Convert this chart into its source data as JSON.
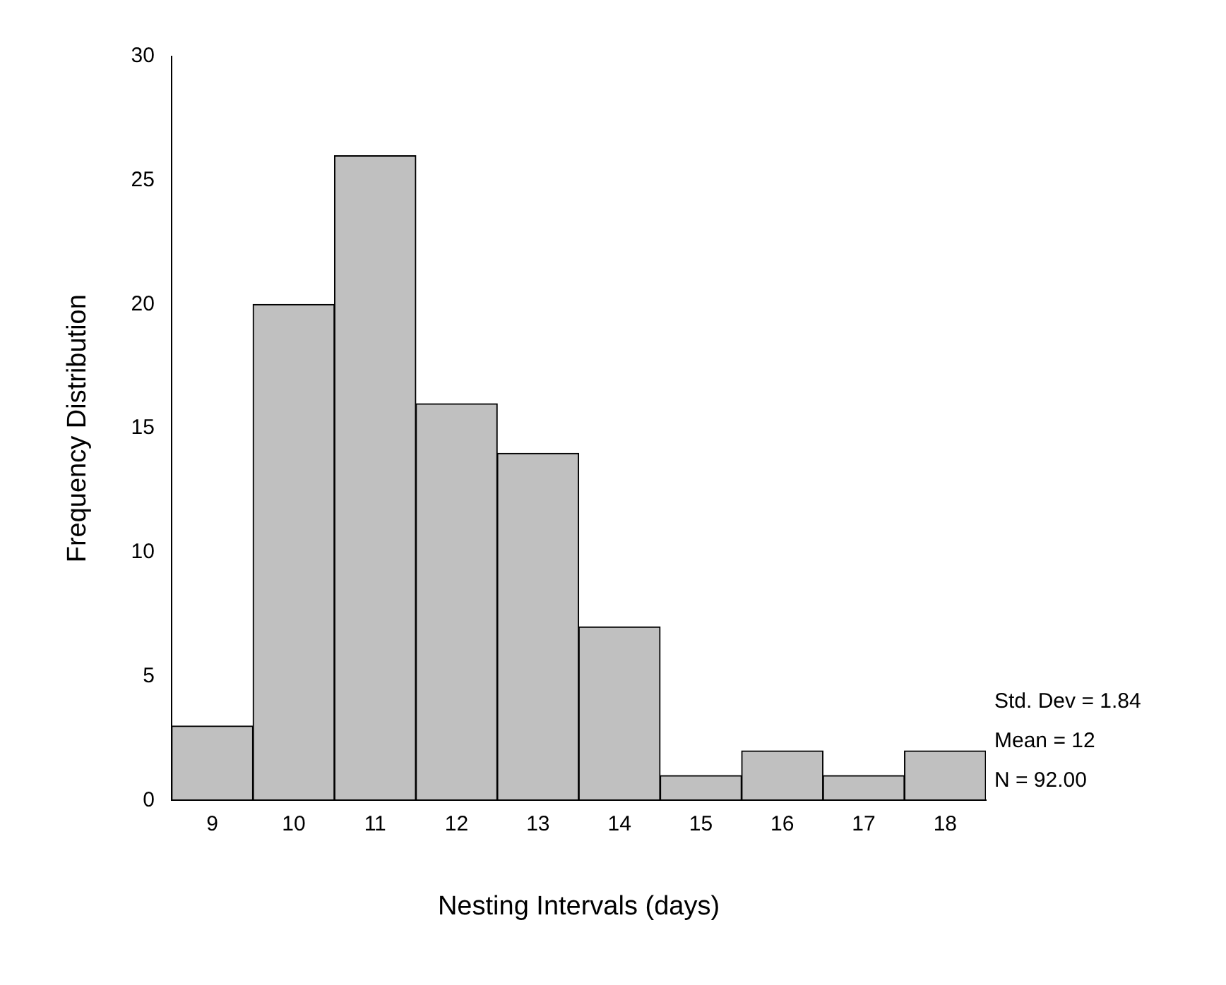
{
  "chart_data": {
    "type": "histogram",
    "xlabel": "Nesting Intervals (days)",
    "ylabel": "Frequency Distribution",
    "bins": [
      8.5,
      9.5,
      10.5,
      11.5,
      12.5,
      13.5,
      14.5,
      15.5,
      16.5,
      17.5,
      18.5
    ],
    "values": [
      3,
      20,
      26,
      16,
      14,
      7,
      1,
      2,
      1,
      2
    ],
    "color": "#c0c0c0",
    "xlim": [
      8.5,
      18.5
    ],
    "xticks": [
      9,
      10,
      11,
      12,
      13,
      14,
      15,
      16,
      17,
      18
    ],
    "ylim": [
      0,
      30
    ],
    "yticks": [
      0,
      5,
      10,
      15,
      20,
      25,
      30
    ],
    "grid": false,
    "legend": false,
    "annotations": [
      "Std. Dev = 1.84",
      "Mean = 12",
      "N = 92.00"
    ]
  }
}
